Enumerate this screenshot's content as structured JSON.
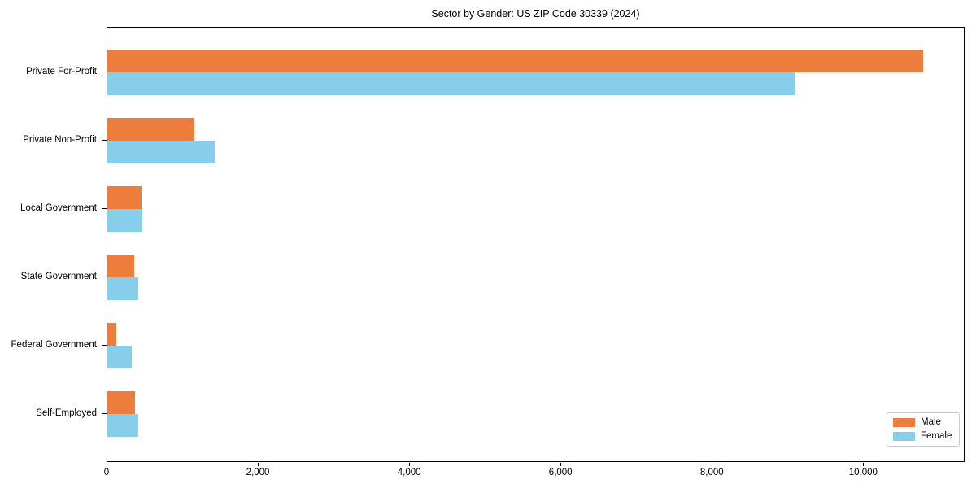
{
  "chart_data": {
    "type": "bar",
    "orientation": "horizontal",
    "title": "Sector by Gender: US ZIP Code 30339 (2024)",
    "xlabel": "",
    "ylabel": "",
    "categories": [
      "Private For-Profit",
      "Private Non-Profit",
      "Local Government",
      "State Government",
      "Federal Government",
      "Self-Employed"
    ],
    "series": [
      {
        "name": "Male",
        "color": "#ec7d3c",
        "values": [
          10800,
          1150,
          450,
          360,
          120,
          370
        ]
      },
      {
        "name": "Female",
        "color": "#87ceeb",
        "values": [
          9100,
          1420,
          460,
          410,
          320,
          410
        ]
      }
    ],
    "xlim": [
      0,
      11340
    ],
    "x_ticks": [
      {
        "value": 0,
        "label": "0"
      },
      {
        "value": 2000,
        "label": "2,000"
      },
      {
        "value": 4000,
        "label": "4,000"
      },
      {
        "value": 6000,
        "label": "6,000"
      },
      {
        "value": 8000,
        "label": "8,000"
      },
      {
        "value": 10000,
        "label": "10,000"
      }
    ],
    "grid": false,
    "legend": {
      "position": "lower right",
      "entries": [
        "Male",
        "Female"
      ]
    }
  },
  "colors": {
    "male": "#ec7d3c",
    "female": "#87ceeb",
    "spine": "#000000",
    "background": "#ffffff",
    "legend_border": "#cccccc"
  }
}
